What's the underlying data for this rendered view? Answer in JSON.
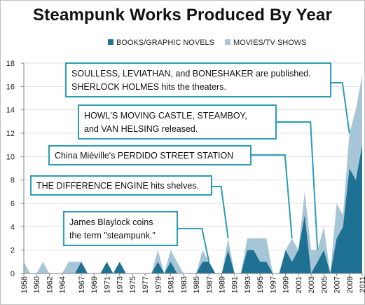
{
  "chart_data": {
    "type": "area",
    "stacked": true,
    "title": "Steampunk Works Produced By Year",
    "xlabel": "",
    "ylabel": "",
    "ylim": [
      0,
      18
    ],
    "yticks": [
      0,
      2,
      4,
      6,
      8,
      10,
      12,
      14,
      16,
      18
    ],
    "x_tick_labels": [
      "1958",
      "1960",
      "1962",
      "1964",
      "1967",
      "1969",
      "1971",
      "1973",
      "1975",
      "1977",
      "1979",
      "1981",
      "1983",
      "1985",
      "1987",
      "1989",
      "1991",
      "1993",
      "1995",
      "1997",
      "1999",
      "2001",
      "2003",
      "2005",
      "2007",
      "2009",
      "2011"
    ],
    "grid": "horizontal",
    "legend_position": "top",
    "x": [
      1958,
      1959,
      1960,
      1961,
      1962,
      1963,
      1964,
      1965,
      1966,
      1967,
      1968,
      1969,
      1970,
      1971,
      1972,
      1973,
      1974,
      1975,
      1976,
      1977,
      1978,
      1979,
      1980,
      1981,
      1982,
      1983,
      1984,
      1985,
      1986,
      1987,
      1988,
      1989,
      1990,
      1991,
      1992,
      1993,
      1994,
      1995,
      1996,
      1997,
      1998,
      1999,
      2000,
      2001,
      2002,
      2003,
      2004,
      2005,
      2006,
      2007,
      2008,
      2009,
      2010,
      2011
    ],
    "series": [
      {
        "name": "BOOKS/GRAPHIC NOVELS",
        "color": "#1f7193",
        "values": [
          0,
          0,
          0,
          0,
          0,
          0,
          0,
          0,
          0,
          1,
          0,
          0,
          0,
          1,
          0,
          1,
          0,
          0,
          0,
          0,
          0,
          1,
          0,
          1,
          0,
          0,
          0,
          0,
          1,
          1,
          0,
          0,
          2,
          0,
          0,
          2,
          2,
          1,
          1,
          0,
          0,
          2,
          1,
          2,
          5,
          0,
          1,
          2,
          0,
          3,
          4,
          9,
          8,
          11
        ]
      },
      {
        "name": "MOVIES/TV SHOWS",
        "color": "#a6c6d8",
        "values": [
          1,
          0,
          0,
          1,
          0,
          0,
          0,
          1,
          1,
          0,
          0,
          0,
          0,
          0,
          0,
          0,
          0,
          0,
          0,
          0,
          0,
          1,
          0,
          1,
          1,
          0,
          0,
          0,
          1,
          0,
          0,
          0,
          1,
          0,
          0,
          1,
          1,
          2,
          2,
          0,
          0,
          0,
          2,
          0,
          2,
          2,
          1,
          2,
          0,
          3,
          1,
          3,
          6,
          6
        ]
      }
    ],
    "annotations": [
      {
        "lines": [
          "SOULLESS, LEVIATHAN, and BONESHAKER are published.",
          "SHERLOCK HOLMES hits the theaters."
        ],
        "year": 2009
      },
      {
        "lines": [
          "HOWL'S MOVING CASTLE, STEAMBOY,",
          "and VAN HELSING released."
        ],
        "year": 2004
      },
      {
        "lines": [
          "China Miéville's PERDIDO STREET STATION"
        ],
        "year": 2000
      },
      {
        "lines": [
          "THE DIFFERENCE ENGINE hits shelves."
        ],
        "year": 1990
      },
      {
        "lines": [
          "James Blaylock coins",
          "the term \"steampunk.\""
        ],
        "year": 1987
      }
    ],
    "colors": {
      "books": "#1f7193",
      "movies": "#a6c6d8",
      "callout_border": "#2a9db1",
      "grid": "#e1e1e1",
      "axis": "#808080"
    }
  }
}
